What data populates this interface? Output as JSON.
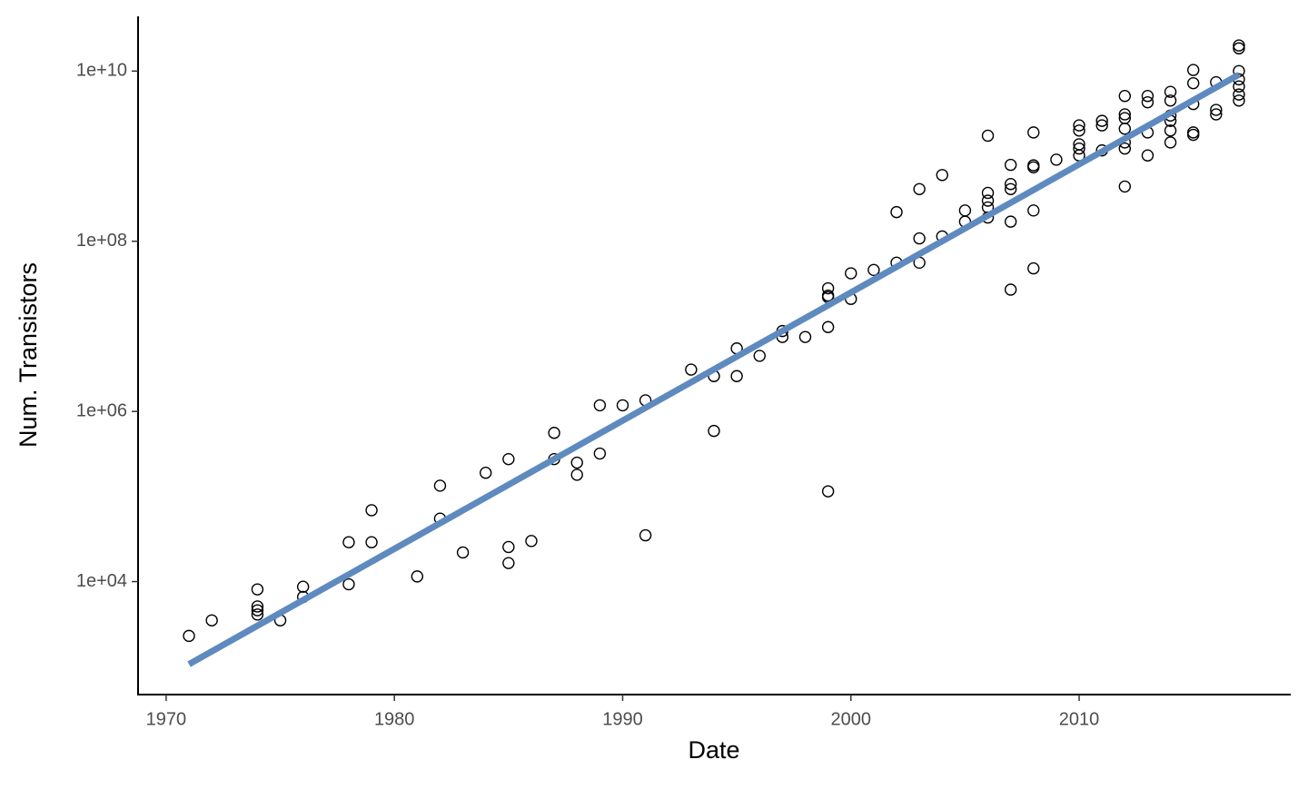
{
  "chart_data": {
    "type": "scatter",
    "xlabel": "Date",
    "ylabel": "Num. Transistors",
    "log_y": true,
    "grid": false,
    "xlim": [
      1968.77,
      2019.23
    ],
    "xticks": [
      1970,
      1980,
      1990,
      2000,
      2010
    ],
    "ylim": [
      470,
      44000000000
    ],
    "yticks": [
      {
        "value": 10000,
        "label": "1e+04"
      },
      {
        "value": 1000000,
        "label": "1e+06"
      },
      {
        "value": 100000000,
        "label": "1e+08"
      },
      {
        "value": 10000000000,
        "label": "1e+10"
      }
    ],
    "color": "#000000",
    "x": [
      1971,
      1972,
      1974,
      1974,
      1974,
      1974,
      1975,
      1976,
      1976,
      1978,
      1978,
      1979,
      1979,
      1981,
      1982,
      1982,
      1983,
      1984,
      1985,
      1985,
      1985,
      1986,
      1987,
      1987,
      1988,
      1988,
      1989,
      1989,
      1990,
      1991,
      1991,
      1993,
      1994,
      1994,
      1995,
      1995,
      1996,
      1997,
      1997,
      1998,
      1999,
      1999,
      1999,
      1999,
      1999,
      2000,
      2000,
      2001,
      2002,
      2002,
      2003,
      2003,
      2003,
      2004,
      2004,
      2005,
      2005,
      2006,
      2006,
      2006,
      2006,
      2006,
      2007,
      2007,
      2007,
      2007,
      2007,
      2008,
      2008,
      2008,
      2008,
      2008,
      2009,
      2010,
      2010,
      2010,
      2010,
      2010,
      2011,
      2011,
      2011,
      2012,
      2012,
      2012,
      2012,
      2012,
      2012,
      2012,
      2013,
      2013,
      2013,
      2013,
      2014,
      2014,
      2014,
      2014,
      2014,
      2014,
      2015,
      2015,
      2015,
      2015,
      2015,
      2016,
      2016,
      2016,
      2017,
      2017,
      2017,
      2017,
      2017,
      2017,
      2017
    ],
    "values": [
      2300,
      3500,
      8100,
      5100,
      4600,
      4100,
      3500,
      8700,
      6600,
      9300,
      29000,
      69000,
      29000,
      11500,
      134000,
      55000,
      22000,
      190000,
      275000,
      25500,
      16500,
      30000,
      560000,
      275000,
      250000,
      180000,
      1180000,
      320000,
      1180000,
      1350000,
      35000,
      3100000,
      2600000,
      590000,
      5500000,
      2600000,
      4500000,
      8800000,
      7500000,
      7500000,
      28000000,
      23000000,
      22000000,
      9800000,
      115000,
      42000000,
      21000000,
      46000000,
      220000000,
      56000000,
      410000000,
      108000000,
      56000000,
      600000000,
      114000000,
      230000000,
      170000000,
      1740000000,
      370000000,
      300000000,
      250000000,
      190000000,
      790000000,
      470000000,
      410000000,
      170000000,
      27000000,
      1900000000,
      780000000,
      740000000,
      230000000,
      48000000,
      910000000,
      2300000000,
      2000000000,
      1380000000,
      1230000000,
      1020000000,
      2600000000,
      2300000000,
      1170000000,
      5100000000,
      3100000000,
      2800000000,
      2100000000,
      1450000000,
      1230000000,
      440000000,
      5100000000,
      4300000000,
      1900000000,
      1020000000,
      5700000000,
      4500000000,
      3000000000,
      2600000000,
      2000000000,
      1450000000,
      10300000000,
      7200000000,
      4100000000,
      1900000000,
      1780000000,
      7400000000,
      3500000000,
      3100000000,
      20000000000,
      18500000000,
      10000000000,
      8000000000,
      6600000000,
      5300000000,
      4500000000
    ],
    "fit": {
      "x": [
        1971,
        2017
      ],
      "values": [
        1070,
        9100000000
      ],
      "color": "#5f8abf"
    }
  }
}
